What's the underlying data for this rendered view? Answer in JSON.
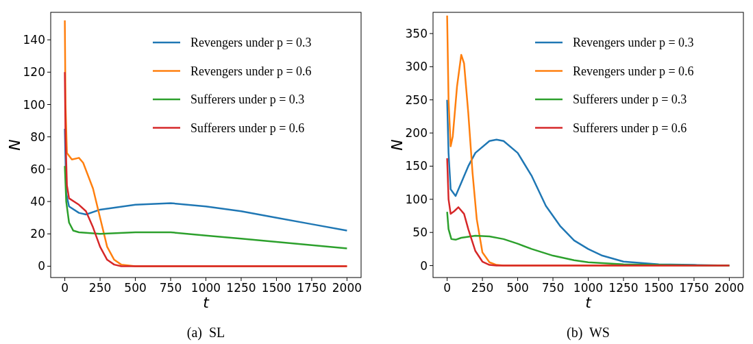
{
  "chart_data": [
    {
      "type": "line",
      "xlabel": "t",
      "ylabel": "N",
      "annotations": [
        "(a)  SL"
      ],
      "legend": "top right",
      "xlim": [
        -100,
        2100
      ],
      "ylim": [
        -7,
        157
      ],
      "xticks": [
        0,
        250,
        500,
        750,
        1000,
        1250,
        1500,
        1750,
        2000
      ],
      "yticks": [
        0,
        20,
        40,
        60,
        80,
        100,
        120,
        140
      ],
      "series": [
        {
          "name": "Revengers under p = 0.3",
          "color": "#1f77b4",
          "x": [
            0,
            10,
            30,
            100,
            150,
            250,
            500,
            750,
            1000,
            1250,
            1500,
            1750,
            2000
          ],
          "values": [
            85,
            45,
            37,
            33,
            32,
            35,
            38,
            39,
            37,
            34,
            30,
            26,
            22
          ]
        },
        {
          "name": "Revengers under p = 0.6",
          "color": "#ff7f0e",
          "x": [
            0,
            5,
            15,
            50,
            100,
            130,
            200,
            250,
            300,
            350,
            400,
            500,
            2000
          ],
          "values": [
            152,
            100,
            70,
            66,
            67,
            64,
            48,
            30,
            12,
            4,
            1,
            0,
            0
          ]
        },
        {
          "name": "Sufferers under p = 0.3",
          "color": "#2ca02c",
          "x": [
            0,
            10,
            30,
            60,
            100,
            250,
            500,
            750,
            1000,
            1250,
            1500,
            1750,
            2000
          ],
          "values": [
            62,
            40,
            27,
            22,
            21,
            20,
            21,
            21,
            19,
            17,
            15,
            13,
            11
          ]
        },
        {
          "name": "Sufferers under p = 0.6",
          "color": "#d62728",
          "x": [
            0,
            5,
            15,
            30,
            100,
            150,
            200,
            250,
            300,
            350,
            400,
            2000
          ],
          "values": [
            120,
            80,
            50,
            42,
            38,
            34,
            24,
            12,
            4,
            1,
            0,
            0
          ]
        }
      ]
    },
    {
      "type": "line",
      "xlabel": "t",
      "ylabel": "N",
      "annotations": [
        "(b)  WS"
      ],
      "legend": "top right",
      "xlim": [
        -100,
        2100
      ],
      "ylim": [
        -18,
        382
      ],
      "xticks": [
        0,
        250,
        500,
        750,
        1000,
        1250,
        1500,
        1750,
        2000
      ],
      "yticks": [
        0,
        50,
        100,
        150,
        200,
        250,
        300,
        350
      ],
      "series": [
        {
          "name": "Revengers under p = 0.3",
          "color": "#1f77b4",
          "x": [
            0,
            10,
            25,
            60,
            100,
            150,
            200,
            300,
            350,
            400,
            500,
            600,
            700,
            800,
            900,
            1000,
            1100,
            1250,
            1500,
            1750,
            2000
          ],
          "values": [
            250,
            170,
            115,
            105,
            125,
            150,
            170,
            188,
            190,
            188,
            170,
            135,
            90,
            60,
            38,
            25,
            15,
            6,
            2,
            1,
            0
          ]
        },
        {
          "name": "Revengers under p = 0.6",
          "color": "#ff7f0e",
          "x": [
            0,
            10,
            25,
            40,
            70,
            100,
            120,
            150,
            180,
            210,
            250,
            300,
            350,
            400,
            2000
          ],
          "values": [
            377,
            250,
            180,
            195,
            270,
            318,
            305,
            230,
            140,
            70,
            20,
            5,
            1,
            0,
            0
          ]
        },
        {
          "name": "Sufferers under p = 0.3",
          "color": "#2ca02c",
          "x": [
            0,
            10,
            30,
            60,
            100,
            200,
            300,
            400,
            500,
            600,
            750,
            900,
            1000,
            1250,
            1500,
            2000
          ],
          "values": [
            81,
            55,
            40,
            39,
            42,
            45,
            44,
            40,
            33,
            25,
            15,
            8,
            5,
            2,
            1,
            0
          ]
        },
        {
          "name": "Sufferers under p = 0.6",
          "color": "#d62728",
          "x": [
            0,
            10,
            25,
            50,
            80,
            120,
            150,
            200,
            250,
            300,
            350,
            2000
          ],
          "values": [
            162,
            100,
            78,
            82,
            88,
            78,
            55,
            22,
            6,
            1,
            0,
            0
          ]
        }
      ]
    }
  ]
}
